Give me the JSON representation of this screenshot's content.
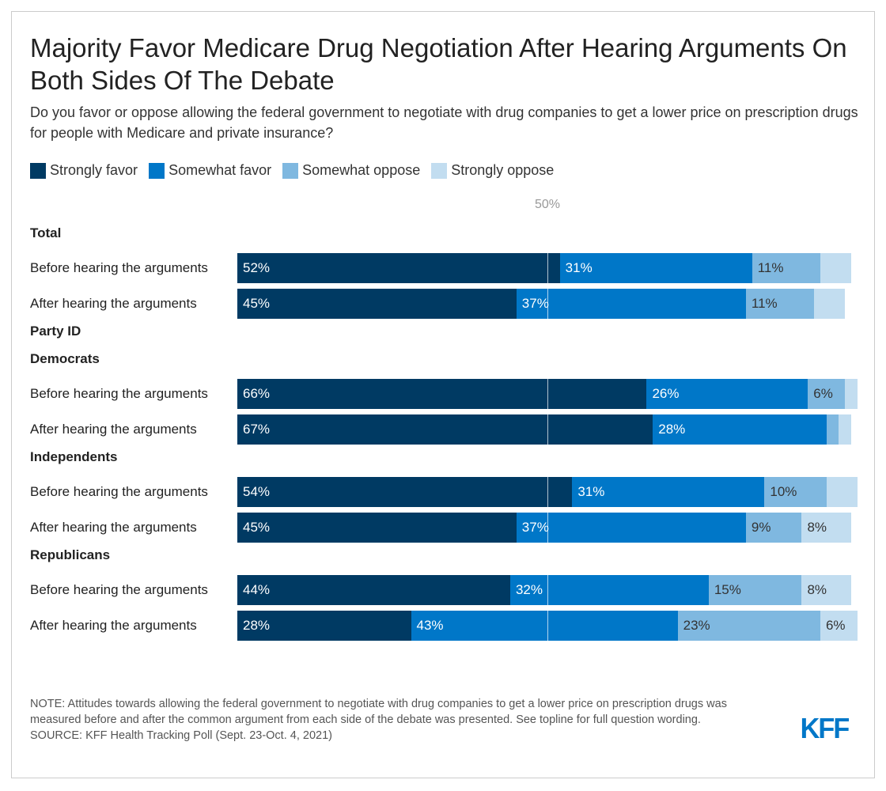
{
  "header": {
    "title": "Majority Favor Medicare Drug Negotiation After Hearing Arguments On Both Sides Of The Debate",
    "subtitle": "Do you favor or oppose allowing the federal government to negotiate with drug companies to get a lower price on prescription drugs for people with Medicare and private insurance?"
  },
  "chart_data": {
    "type": "bar",
    "orientation": "horizontal",
    "stacked": true,
    "series_names": [
      "Strongly favor",
      "Somewhat favor",
      "Somewhat oppose",
      "Strongly oppose"
    ],
    "colors": [
      "#003a63",
      "#0077c8",
      "#7fb8e0",
      "#c2ddf0"
    ],
    "reference_line": {
      "value": 50,
      "label": "50%"
    },
    "xlim": [
      0,
      100
    ],
    "groups": [
      {
        "label": "Total",
        "rows": [
          {
            "label": "Before hearing the arguments",
            "values": [
              52,
              31,
              11,
              5
            ],
            "labels": [
              "52%",
              "31%",
              "11%",
              ""
            ]
          },
          {
            "label": "After hearing the arguments",
            "values": [
              45,
              37,
              11,
              5
            ],
            "labels": [
              "45%",
              "37%",
              "11%",
              ""
            ]
          }
        ]
      },
      {
        "label": "Party ID",
        "rows": []
      },
      {
        "label": "Democrats",
        "rows": [
          {
            "label": "Before hearing the arguments",
            "values": [
              66,
              26,
              6,
              2
            ],
            "labels": [
              "66%",
              "26%",
              "6%",
              ""
            ]
          },
          {
            "label": "After hearing the arguments",
            "values": [
              67,
              28,
              2,
              2
            ],
            "labels": [
              "67%",
              "28%",
              "",
              ""
            ]
          }
        ]
      },
      {
        "label": "Independents",
        "rows": [
          {
            "label": "Before hearing the arguments",
            "values": [
              54,
              31,
              10,
              5
            ],
            "labels": [
              "54%",
              "31%",
              "10%",
              ""
            ]
          },
          {
            "label": "After hearing the arguments",
            "values": [
              45,
              37,
              9,
              8
            ],
            "labels": [
              "45%",
              "37%",
              "9%",
              "8%"
            ]
          }
        ]
      },
      {
        "label": "Republicans",
        "rows": [
          {
            "label": "Before hearing the arguments",
            "values": [
              44,
              32,
              15,
              8
            ],
            "labels": [
              "44%",
              "32%",
              "15%",
              "8%"
            ]
          },
          {
            "label": "After hearing the arguments",
            "values": [
              28,
              43,
              23,
              6
            ],
            "labels": [
              "28%",
              "43%",
              "23%",
              "6%"
            ]
          }
        ]
      }
    ]
  },
  "footer": {
    "note": "NOTE: Attitudes towards allowing the federal government to negotiate with drug companies to get a lower price on prescription drugs was measured before and after the common argument from each side of the debate was presented. See topline for full question wording.",
    "source": "SOURCE: KFF Health Tracking Poll (Sept. 23-Oct. 4, 2021)",
    "logo": "KFF"
  }
}
